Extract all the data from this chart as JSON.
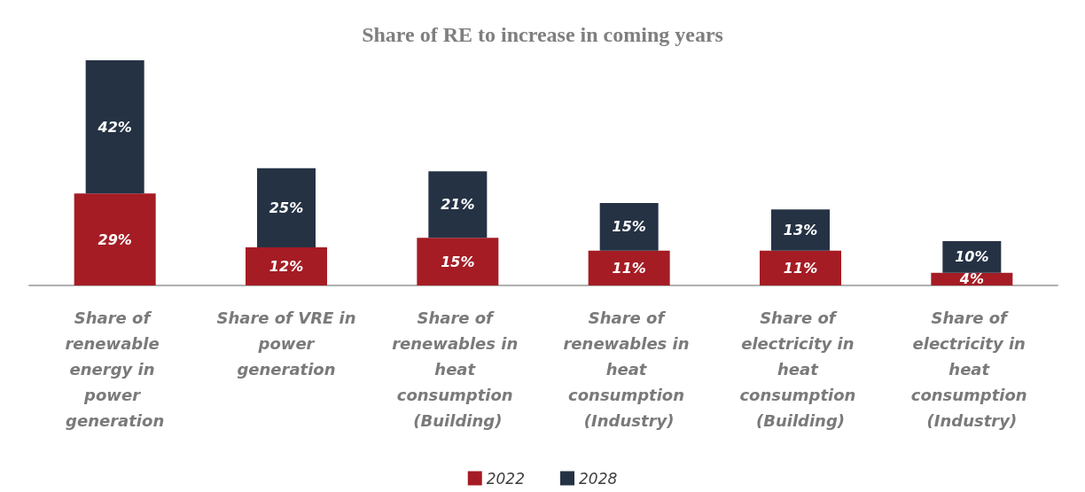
{
  "chart_data": {
    "type": "bar",
    "title": "Share of RE to increase in coming years",
    "stacked": true,
    "categories": [
      "Share of renewable energy in power generation",
      "Share of VRE in power generation",
      "Share of renewables in heat consumption (Building)",
      "Share of renewables in heat consumption (Industry)",
      "Share of electricity in heat consumption (Building)",
      "Share of electricity in heat consumption (Industry)"
    ],
    "series": [
      {
        "name": "2022",
        "color": "#a51c24",
        "values": [
          29,
          12,
          15,
          11,
          11,
          4
        ],
        "value_labels": [
          "29%",
          "12%",
          "15%",
          "11%",
          "11%",
          "4%"
        ]
      },
      {
        "name": "2028",
        "color": "#253244",
        "values": [
          42,
          25,
          21,
          15,
          13,
          10
        ],
        "value_labels": [
          "42%",
          "25%",
          "21%",
          "15%",
          "13%",
          "10%"
        ]
      }
    ],
    "legend": "bottom"
  }
}
